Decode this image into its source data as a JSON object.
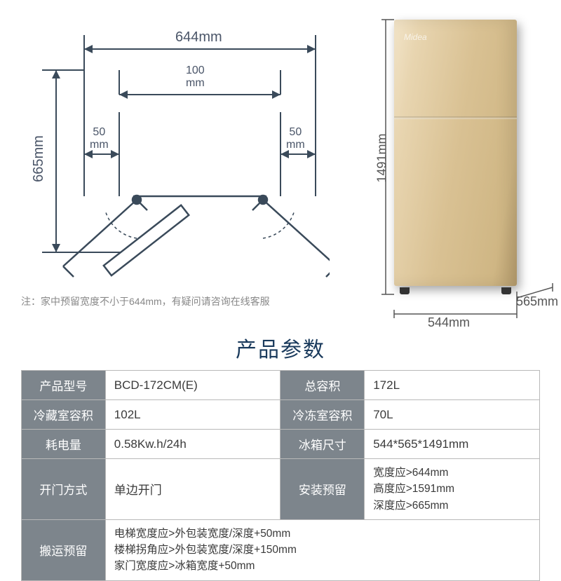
{
  "diagram": {
    "width_mm": "644mm",
    "height_mm": "665mm",
    "gap_mm": "100\nmm",
    "side_left": "50\nmm",
    "side_right": "50\nmm",
    "stroke": "#3a4a5a",
    "stroke_width": 2
  },
  "note": "注：家中预留宽度不小于644mm，有疑问请咨询在线客服",
  "fridge": {
    "height_label": "1491mm",
    "width_label": "544mm",
    "depth_label": "565mm",
    "logo": "Midea"
  },
  "title": "产品参数",
  "table": {
    "header_bg": "#7d858c",
    "header_fg": "#ffffff",
    "border": "#b8b8b8",
    "rows": [
      [
        {
          "hd": "产品型号"
        },
        {
          "val": "BCD-172CM(E)"
        },
        {
          "hd": "总容积"
        },
        {
          "val": "172L"
        }
      ],
      [
        {
          "hd": "冷藏室容积"
        },
        {
          "val": "102L"
        },
        {
          "hd": "冷冻室容积"
        },
        {
          "val": "70L"
        }
      ],
      [
        {
          "hd": "耗电量"
        },
        {
          "val": "0.58Kw.h/24h"
        },
        {
          "hd": "冰箱尺寸"
        },
        {
          "val": "544*565*1491mm"
        }
      ],
      [
        {
          "hd": "开门方式"
        },
        {
          "val": "单边开门"
        },
        {
          "hd": "安装预留"
        },
        {
          "val": "宽度应>644mm\n高度应>1591mm\n深度应>665mm"
        }
      ],
      [
        {
          "hd": "搬运预留"
        },
        {
          "val": "电梯宽度应>外包装宽度/深度+50mm\n楼梯拐角应>外包装宽度/深度+150mm\n家门宽度应>冰箱宽度+50mm",
          "span": 3
        }
      ]
    ]
  }
}
